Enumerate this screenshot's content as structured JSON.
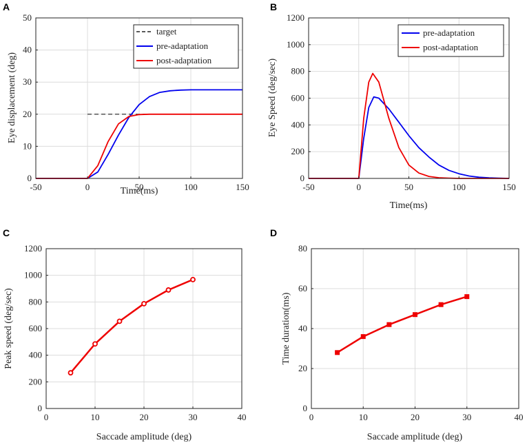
{
  "colors": {
    "blue": "#0000ee",
    "red": "#ee0000",
    "black": "#222222",
    "grid": "#dcdcdc"
  },
  "chart_data": [
    {
      "letter": "A",
      "type": "line",
      "xlabel": "Time(ms)",
      "ylabel": "Eye displacement (deg)",
      "xlim": [
        -50,
        150
      ],
      "ylim": [
        0,
        50
      ],
      "xticks": [
        -50,
        0,
        50,
        100,
        150
      ],
      "yticks": [
        0,
        10,
        20,
        30,
        40,
        50
      ],
      "grid": true,
      "legend_position": "top-right",
      "series": [
        {
          "name": "target",
          "color": "#222222",
          "dash": true,
          "x": [
            0,
            150
          ],
          "y": [
            20,
            20
          ]
        },
        {
          "name": "pre-adaptation",
          "color": "#0000ee",
          "dash": false,
          "x": [
            -50,
            0,
            10,
            20,
            30,
            40,
            50,
            60,
            70,
            80,
            90,
            100,
            110,
            120,
            150
          ],
          "y": [
            0,
            0,
            2,
            7.5,
            13.5,
            19,
            23,
            25.5,
            26.8,
            27.3,
            27.5,
            27.6,
            27.6,
            27.6,
            27.6
          ]
        },
        {
          "name": "post-adaptation",
          "color": "#ee0000",
          "dash": false,
          "x": [
            -50,
            0,
            10,
            20,
            30,
            40,
            50,
            60,
            70,
            150
          ],
          "y": [
            0,
            0,
            4,
            11.5,
            17,
            19.3,
            19.9,
            20.0,
            20.0,
            20.0
          ]
        }
      ]
    },
    {
      "letter": "B",
      "type": "line",
      "xlabel": "Time(ms)",
      "ylabel": "Eye Speed (deg/sec)",
      "xlim": [
        -50,
        150
      ],
      "ylim": [
        0,
        1200
      ],
      "xticks": [
        -50,
        0,
        50,
        100,
        150
      ],
      "yticks": [
        0,
        200,
        400,
        600,
        800,
        1000,
        1200
      ],
      "grid": true,
      "legend_position": "top-right",
      "series": [
        {
          "name": "pre-adaptation",
          "color": "#0000ee",
          "dash": false,
          "x": [
            -50,
            0,
            5,
            10,
            15,
            20,
            30,
            40,
            50,
            60,
            70,
            80,
            90,
            100,
            110,
            120,
            130,
            140,
            150
          ],
          "y": [
            0,
            0,
            300,
            530,
            610,
            600,
            520,
            420,
            320,
            230,
            160,
            100,
            60,
            35,
            18,
            9,
            4,
            2,
            0
          ]
        },
        {
          "name": "post-adaptation",
          "color": "#ee0000",
          "dash": false,
          "x": [
            -50,
            0,
            5,
            10,
            14,
            20,
            30,
            40,
            50,
            60,
            70,
            80,
            90,
            100,
            150
          ],
          "y": [
            0,
            0,
            450,
            720,
            785,
            720,
            450,
            230,
            100,
            40,
            15,
            5,
            2,
            0,
            0
          ]
        }
      ]
    },
    {
      "letter": "C",
      "type": "line",
      "xlabel": "Saccade amplitude (deg)",
      "ylabel": "Peak speed (deg/sec)",
      "xlim": [
        0,
        40
      ],
      "ylim": [
        0,
        1200
      ],
      "xticks": [
        0,
        10,
        20,
        30,
        40
      ],
      "yticks": [
        0,
        200,
        400,
        600,
        800,
        1000,
        1200
      ],
      "grid": true,
      "marker": "circle",
      "series": [
        {
          "name": "peak speed",
          "color": "#ee0000",
          "dash": false,
          "x": [
            5,
            10,
            15,
            20,
            25,
            30
          ],
          "y": [
            268,
            485,
            655,
            787,
            890,
            968
          ]
        }
      ]
    },
    {
      "letter": "D",
      "type": "line",
      "xlabel": "Saccade amplitude (deg)",
      "ylabel": "Time duration(ms)",
      "xlim": [
        0,
        40
      ],
      "ylim": [
        0,
        80
      ],
      "xticks": [
        0,
        10,
        20,
        30,
        40
      ],
      "yticks": [
        0,
        20,
        40,
        60,
        80
      ],
      "grid": true,
      "marker": "square",
      "series": [
        {
          "name": "duration",
          "color": "#ee0000",
          "dash": false,
          "x": [
            5,
            10,
            15,
            20,
            25,
            30
          ],
          "y": [
            28,
            36,
            42,
            47,
            52,
            56
          ]
        }
      ]
    }
  ]
}
